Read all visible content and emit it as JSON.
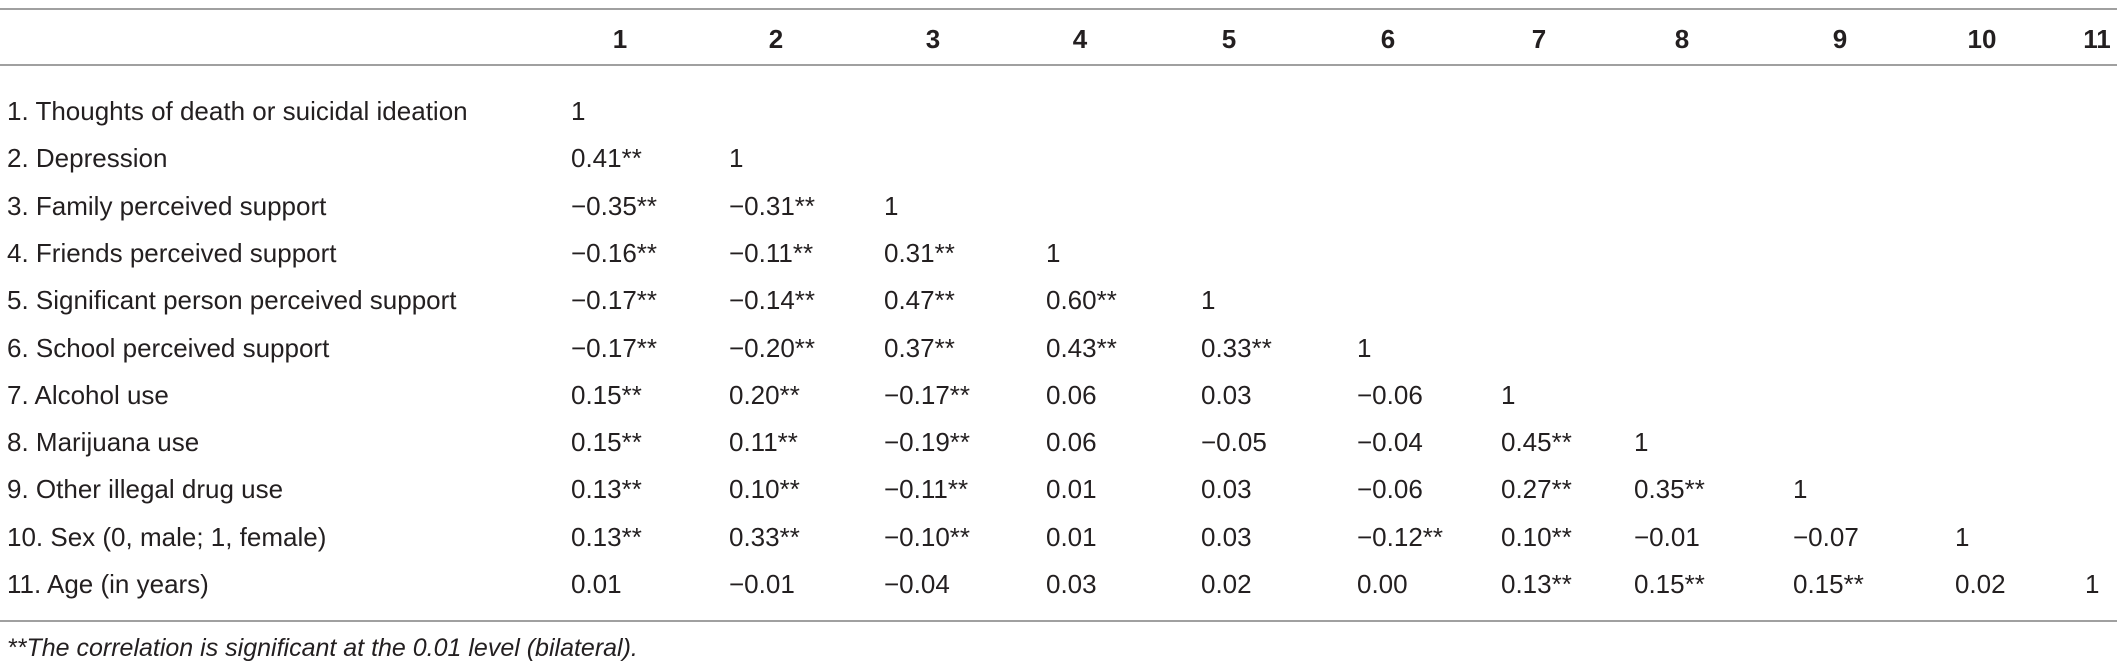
{
  "table": {
    "columns": [
      "1",
      "2",
      "3",
      "4",
      "5",
      "6",
      "7",
      "8",
      "9",
      "10",
      "11"
    ],
    "rows": [
      {
        "label": "1. Thoughts of death or suicidal ideation",
        "cells": [
          "1"
        ]
      },
      {
        "label": "2. Depression",
        "cells": [
          "0.41**",
          "1"
        ]
      },
      {
        "label": "3. Family perceived support",
        "cells": [
          "−0.35**",
          "−0.31**",
          "1"
        ]
      },
      {
        "label": "4. Friends perceived support",
        "cells": [
          "−0.16**",
          "−0.11**",
          "0.31**",
          "1"
        ]
      },
      {
        "label": "5. Significant person perceived support",
        "cells": [
          "−0.17**",
          "−0.14**",
          "0.47**",
          "0.60**",
          "1"
        ]
      },
      {
        "label": "6. School perceived support",
        "cells": [
          "−0.17**",
          "−0.20**",
          "0.37**",
          "0.43**",
          "0.33**",
          "1"
        ]
      },
      {
        "label": "7. Alcohol use",
        "cells": [
          "0.15**",
          "0.20**",
          "−0.17**",
          "0.06",
          "0.03",
          "−0.06",
          "1"
        ]
      },
      {
        "label": "8. Marijuana use",
        "cells": [
          "0.15**",
          "0.11**",
          "−0.19**",
          "0.06",
          "−0.05",
          "−0.04",
          "0.45**",
          "1"
        ]
      },
      {
        "label": "9. Other illegal drug use",
        "cells": [
          "0.13**",
          "0.10**",
          "−0.11**",
          "0.01",
          "0.03",
          "−0.06",
          "0.27**",
          "0.35**",
          "1"
        ]
      },
      {
        "label": "10. Sex (0, male; 1, female)",
        "cells": [
          "0.13**",
          "0.33**",
          "−0.10**",
          "0.01",
          "0.03",
          "−0.12**",
          "0.10**",
          "−0.01",
          "−0.07",
          "1"
        ]
      },
      {
        "label": "11. Age (in years)",
        "cells": [
          "0.01",
          "−0.01",
          "−0.04",
          "0.03",
          "0.02",
          "0.00",
          "0.13**",
          "0.15**",
          "0.15**",
          "0.02",
          "1"
        ]
      }
    ],
    "footnote": "**The correlation is significant at the 0.01 level (bilateral)."
  }
}
